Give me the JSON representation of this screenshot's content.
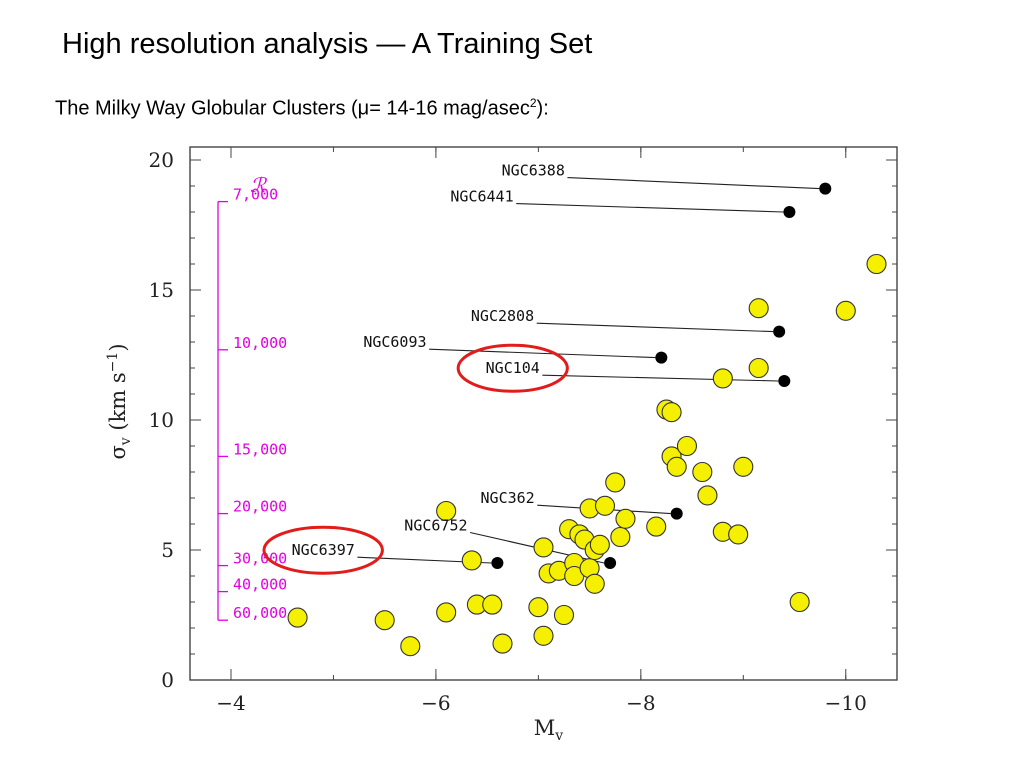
{
  "page": {
    "title": "High resolution analysis — A Training Set",
    "subtitle_text": "The Milky Way Globular Clusters (",
    "subtitle_mu": "μ",
    "subtitle_rest": "= 14-16 mag/asec",
    "subtitle_sup": "2",
    "subtitle_end": "):"
  },
  "chart_data": {
    "type": "scatter",
    "xlabel": "M",
    "xlabel_sub": "v",
    "ylabel": "σ",
    "ylabel_sub": "v",
    "ylabel_units": "(km s",
    "ylabel_exp": "−1",
    "ylabel_close": ")",
    "xlim": [
      -3.6,
      -10.5
    ],
    "ylim": [
      0,
      20.5
    ],
    "xticks": [
      -4,
      -6,
      -8,
      -10
    ],
    "xtick_labels": [
      "−4",
      "−6",
      "−8",
      "−10"
    ],
    "yticks": [
      0,
      5,
      10,
      15,
      20
    ],
    "ytick_labels": [
      "0",
      "5",
      "10",
      "15",
      "20"
    ],
    "colors": {
      "axes": "#444444",
      "yellow_fill": "#f5f000",
      "black_fill": "#000000",
      "magenta": "#e400e4",
      "ellipse": "#e21b1b"
    },
    "series": [
      {
        "name": "",
        "marker": "yellow-circle",
        "points": [
          {
            "x": -4.65,
            "y": 2.4
          },
          {
            "x": -5.5,
            "y": 2.3
          },
          {
            "x": -5.75,
            "y": 1.3
          },
          {
            "x": -6.1,
            "y": 6.5
          },
          {
            "x": -6.1,
            "y": 2.6
          },
          {
            "x": -6.35,
            "y": 4.6
          },
          {
            "x": -6.4,
            "y": 2.9
          },
          {
            "x": -6.55,
            "y": 2.9
          },
          {
            "x": -6.65,
            "y": 1.4
          },
          {
            "x": -7.0,
            "y": 2.8
          },
          {
            "x": -7.05,
            "y": 5.1
          },
          {
            "x": -7.05,
            "y": 1.7
          },
          {
            "x": -7.1,
            "y": 4.1
          },
          {
            "x": -7.2,
            "y": 4.2
          },
          {
            "x": -7.25,
            "y": 2.5
          },
          {
            "x": -7.3,
            "y": 5.8
          },
          {
            "x": -7.35,
            "y": 4.5
          },
          {
            "x": -7.35,
            "y": 4.0
          },
          {
            "x": -7.4,
            "y": 5.6
          },
          {
            "x": -7.45,
            "y": 5.4
          },
          {
            "x": -7.5,
            "y": 6.6
          },
          {
            "x": -7.5,
            "y": 4.3
          },
          {
            "x": -7.55,
            "y": 5.0
          },
          {
            "x": -7.55,
            "y": 3.7
          },
          {
            "x": -7.6,
            "y": 5.2
          },
          {
            "x": -7.65,
            "y": 6.7
          },
          {
            "x": -7.75,
            "y": 7.6
          },
          {
            "x": -7.8,
            "y": 5.5
          },
          {
            "x": -7.85,
            "y": 6.2
          },
          {
            "x": -8.15,
            "y": 5.9
          },
          {
            "x": -8.25,
            "y": 10.4
          },
          {
            "x": -8.3,
            "y": 10.3
          },
          {
            "x": -8.3,
            "y": 8.6
          },
          {
            "x": -8.35,
            "y": 8.2
          },
          {
            "x": -8.45,
            "y": 9.0
          },
          {
            "x": -8.6,
            "y": 8.0
          },
          {
            "x": -8.65,
            "y": 7.1
          },
          {
            "x": -8.8,
            "y": 11.6
          },
          {
            "x": -8.8,
            "y": 5.7
          },
          {
            "x": -8.95,
            "y": 5.6
          },
          {
            "x": -9.0,
            "y": 8.2
          },
          {
            "x": -9.15,
            "y": 14.3
          },
          {
            "x": -9.15,
            "y": 12.0
          },
          {
            "x": -9.55,
            "y": 3.0
          },
          {
            "x": -10.0,
            "y": 14.2
          },
          {
            "x": -10.3,
            "y": 16.0
          }
        ]
      },
      {
        "name": "",
        "marker": "black-dot",
        "points": [
          {
            "x": -9.8,
            "y": 18.9,
            "label": "NGC6388",
            "label_x": -6.95,
            "label_y": 19.4
          },
          {
            "x": -9.45,
            "y": 18.0,
            "label": "NGC6441",
            "label_x": -6.45,
            "label_y": 18.4
          },
          {
            "x": -9.35,
            "y": 13.4,
            "label": "NGC2808",
            "label_x": -6.65,
            "label_y": 13.8
          },
          {
            "x": -8.2,
            "y": 12.4,
            "label": "NGC6093",
            "label_x": -5.6,
            "label_y": 12.8
          },
          {
            "x": -9.4,
            "y": 11.5,
            "label": "NGC104",
            "label_x": -6.75,
            "label_y": 11.8
          },
          {
            "x": -8.35,
            "y": 6.4,
            "label": "NGC362",
            "label_x": -6.7,
            "label_y": 6.8
          },
          {
            "x": -7.7,
            "y": 4.5,
            "label": "NGC6752",
            "label_x": -6.0,
            "label_y": 5.75
          },
          {
            "x": -6.6,
            "y": 4.5,
            "label": "NGC6397",
            "label_x": -4.9,
            "label_y": 4.8
          }
        ]
      }
    ],
    "circled_labels": [
      "NGC104",
      "NGC6397"
    ],
    "r_scale": {
      "title": "ℛ",
      "entries": [
        {
          "label": "7,000",
          "y": 18.4
        },
        {
          "label": "10,000",
          "y": 12.7
        },
        {
          "label": "15,000",
          "y": 8.6
        },
        {
          "label": "20,000",
          "y": 6.4
        },
        {
          "label": "30,000",
          "y": 4.4
        },
        {
          "label": "40,000",
          "y": 3.4
        },
        {
          "label": "60,000",
          "y": 2.3
        }
      ]
    }
  }
}
